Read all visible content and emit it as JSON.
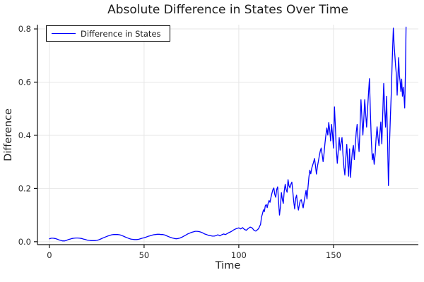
{
  "chart_data": {
    "type": "line",
    "title": "Absolute Difference in States Over Time",
    "xlabel": "Time",
    "ylabel": "Difference",
    "legend": {
      "position": "top-left",
      "entries": [
        "Difference in States"
      ]
    },
    "grid": true,
    "colors": {
      "line": "#0000ff",
      "grid": "#e6e6e6",
      "axis": "#111111",
      "tick_label": "#2b2b2b",
      "title": "#1c1c1c"
    },
    "xlim": [
      -6.3,
      194.8
    ],
    "ylim": [
      -0.011,
      0.816
    ],
    "x_ticks": [
      0,
      50,
      100,
      150
    ],
    "x_tick_labels": [
      "0",
      "50",
      "100",
      "150"
    ],
    "y_ticks": [
      0,
      0.2,
      0.4,
      0.6,
      0.8
    ],
    "y_tick_labels": [
      "0.0",
      "0.2",
      "0.4",
      "0.6",
      "0.8"
    ],
    "series": [
      {
        "name": "Difference in States",
        "color": "#0000ff",
        "points": [
          [
            0,
            0.011
          ],
          [
            1,
            0.013
          ],
          [
            2,
            0.013
          ],
          [
            3,
            0.012
          ],
          [
            4,
            0.01
          ],
          [
            5,
            0.007
          ],
          [
            6,
            0.005
          ],
          [
            7,
            0.003
          ],
          [
            8,
            0.003
          ],
          [
            9,
            0.005
          ],
          [
            10,
            0.008
          ],
          [
            11,
            0.01
          ],
          [
            12,
            0.012
          ],
          [
            13,
            0.013
          ],
          [
            14,
            0.014
          ],
          [
            15,
            0.014
          ],
          [
            16,
            0.013
          ],
          [
            17,
            0.012
          ],
          [
            18,
            0.01
          ],
          [
            19,
            0.008
          ],
          [
            20,
            0.006
          ],
          [
            21,
            0.005
          ],
          [
            22,
            0.004
          ],
          [
            23,
            0.004
          ],
          [
            24,
            0.004
          ],
          [
            25,
            0.005
          ],
          [
            26,
            0.007
          ],
          [
            27,
            0.01
          ],
          [
            28,
            0.013
          ],
          [
            29,
            0.016
          ],
          [
            30,
            0.019
          ],
          [
            31,
            0.022
          ],
          [
            32,
            0.024
          ],
          [
            33,
            0.026
          ],
          [
            34,
            0.027
          ],
          [
            35,
            0.027
          ],
          [
            36,
            0.027
          ],
          [
            37,
            0.026
          ],
          [
            38,
            0.024
          ],
          [
            39,
            0.021
          ],
          [
            40,
            0.018
          ],
          [
            41,
            0.015
          ],
          [
            42,
            0.012
          ],
          [
            43,
            0.01
          ],
          [
            44,
            0.009
          ],
          [
            45,
            0.008
          ],
          [
            46,
            0.008
          ],
          [
            47,
            0.009
          ],
          [
            48,
            0.011
          ],
          [
            49,
            0.013
          ],
          [
            50,
            0.015
          ],
          [
            51,
            0.017
          ],
          [
            52,
            0.02
          ],
          [
            53,
            0.022
          ],
          [
            54,
            0.024
          ],
          [
            55,
            0.026
          ],
          [
            56,
            0.027
          ],
          [
            57,
            0.028
          ],
          [
            58,
            0.028
          ],
          [
            59,
            0.027
          ],
          [
            60,
            0.027
          ],
          [
            61,
            0.025
          ],
          [
            62,
            0.022
          ],
          [
            63,
            0.019
          ],
          [
            64,
            0.016
          ],
          [
            65,
            0.014
          ],
          [
            66,
            0.012
          ],
          [
            67,
            0.011
          ],
          [
            68,
            0.012
          ],
          [
            69,
            0.014
          ],
          [
            70,
            0.017
          ],
          [
            71,
            0.021
          ],
          [
            72,
            0.025
          ],
          [
            73,
            0.029
          ],
          [
            74,
            0.032
          ],
          [
            75,
            0.035
          ],
          [
            76,
            0.037
          ],
          [
            77,
            0.039
          ],
          [
            78,
            0.039
          ],
          [
            79,
            0.038
          ],
          [
            80,
            0.036
          ],
          [
            81,
            0.033
          ],
          [
            82,
            0.029
          ],
          [
            83,
            0.027
          ],
          [
            84,
            0.024
          ],
          [
            85,
            0.023
          ],
          [
            86,
            0.021
          ],
          [
            87,
            0.021
          ],
          [
            88,
            0.023
          ],
          [
            89,
            0.026
          ],
          [
            90,
            0.022
          ],
          [
            91,
            0.026
          ],
          [
            92,
            0.029
          ],
          [
            93,
            0.027
          ],
          [
            94,
            0.031
          ],
          [
            95,
            0.035
          ],
          [
            96,
            0.038
          ],
          [
            97,
            0.043
          ],
          [
            98,
            0.047
          ],
          [
            99,
            0.05
          ],
          [
            100,
            0.052
          ],
          [
            101,
            0.048
          ],
          [
            102,
            0.053
          ],
          [
            103,
            0.046
          ],
          [
            104,
            0.043
          ],
          [
            105,
            0.05
          ],
          [
            106,
            0.055
          ],
          [
            107,
            0.052
          ],
          [
            108,
            0.043
          ],
          [
            109,
            0.04
          ],
          [
            110,
            0.046
          ],
          [
            110.5,
            0.05
          ],
          [
            111,
            0.058
          ],
          [
            111.5,
            0.065
          ],
          [
            112,
            0.093
          ],
          [
            112.5,
            0.105
          ],
          [
            113,
            0.12
          ],
          [
            113.5,
            0.113
          ],
          [
            114,
            0.135
          ],
          [
            114.5,
            0.14
          ],
          [
            115,
            0.128
          ],
          [
            115.5,
            0.145
          ],
          [
            116,
            0.155
          ],
          [
            116.5,
            0.148
          ],
          [
            117,
            0.167
          ],
          [
            117.5,
            0.182
          ],
          [
            118,
            0.196
          ],
          [
            118.5,
            0.202
          ],
          [
            119,
            0.178
          ],
          [
            119.5,
            0.167
          ],
          [
            120,
            0.196
          ],
          [
            120.5,
            0.206
          ],
          [
            121,
            0.15
          ],
          [
            121.5,
            0.1
          ],
          [
            122,
            0.132
          ],
          [
            122.5,
            0.185
          ],
          [
            123,
            0.158
          ],
          [
            123.5,
            0.144
          ],
          [
            124,
            0.19
          ],
          [
            124.5,
            0.216
          ],
          [
            125,
            0.196
          ],
          [
            125.5,
            0.186
          ],
          [
            126,
            0.233
          ],
          [
            126.5,
            0.21
          ],
          [
            127,
            0.203
          ],
          [
            127.5,
            0.216
          ],
          [
            128,
            0.224
          ],
          [
            128.5,
            0.19
          ],
          [
            129,
            0.152
          ],
          [
            129.5,
            0.123
          ],
          [
            130,
            0.162
          ],
          [
            130.5,
            0.175
          ],
          [
            131,
            0.14
          ],
          [
            131.5,
            0.119
          ],
          [
            132,
            0.141
          ],
          [
            132.5,
            0.155
          ],
          [
            133,
            0.158
          ],
          [
            133.5,
            0.141
          ],
          [
            134,
            0.127
          ],
          [
            134.5,
            0.152
          ],
          [
            135,
            0.172
          ],
          [
            135.5,
            0.193
          ],
          [
            136,
            0.161
          ],
          [
            136.5,
            0.2
          ],
          [
            137,
            0.242
          ],
          [
            137.5,
            0.269
          ],
          [
            138,
            0.255
          ],
          [
            138.5,
            0.276
          ],
          [
            139,
            0.287
          ],
          [
            139.5,
            0.3
          ],
          [
            140,
            0.313
          ],
          [
            140.5,
            0.284
          ],
          [
            141,
            0.254
          ],
          [
            141.5,
            0.281
          ],
          [
            142,
            0.302
          ],
          [
            142.5,
            0.322
          ],
          [
            143,
            0.341
          ],
          [
            143.5,
            0.352
          ],
          [
            144,
            0.329
          ],
          [
            144.5,
            0.301
          ],
          [
            145,
            0.331
          ],
          [
            145.5,
            0.371
          ],
          [
            146,
            0.402
          ],
          [
            146.5,
            0.428
          ],
          [
            147,
            0.401
          ],
          [
            147.5,
            0.448
          ],
          [
            148,
            0.419
          ],
          [
            148.5,
            0.379
          ],
          [
            149,
            0.441
          ],
          [
            149.5,
            0.401
          ],
          [
            150,
            0.352
          ],
          [
            150.5,
            0.507
          ],
          [
            151,
            0.431
          ],
          [
            151.5,
            0.349
          ],
          [
            152,
            0.295
          ],
          [
            152.5,
            0.341
          ],
          [
            153,
            0.392
          ],
          [
            153.5,
            0.344
          ],
          [
            154,
            0.371
          ],
          [
            154.5,
            0.392
          ],
          [
            155,
            0.329
          ],
          [
            155.5,
            0.279
          ],
          [
            156,
            0.251
          ],
          [
            156.5,
            0.311
          ],
          [
            157,
            0.366
          ],
          [
            157.5,
            0.299
          ],
          [
            158,
            0.246
          ],
          [
            158.5,
            0.349
          ],
          [
            159,
            0.242
          ],
          [
            159.5,
            0.301
          ],
          [
            160,
            0.341
          ],
          [
            160.5,
            0.362
          ],
          [
            161,
            0.309
          ],
          [
            161.5,
            0.361
          ],
          [
            162,
            0.412
          ],
          [
            162.5,
            0.441
          ],
          [
            163,
            0.379
          ],
          [
            163.5,
            0.339
          ],
          [
            164,
            0.421
          ],
          [
            164.5,
            0.534
          ],
          [
            165,
            0.469
          ],
          [
            165.5,
            0.401
          ],
          [
            166,
            0.459
          ],
          [
            166.5,
            0.534
          ],
          [
            167,
            0.479
          ],
          [
            167.5,
            0.431
          ],
          [
            168,
            0.501
          ],
          [
            168.5,
            0.559
          ],
          [
            169,
            0.613
          ],
          [
            169.5,
            0.481
          ],
          [
            170,
            0.379
          ],
          [
            170.5,
            0.308
          ],
          [
            171,
            0.331
          ],
          [
            171.5,
            0.291
          ],
          [
            172,
            0.329
          ],
          [
            172.5,
            0.389
          ],
          [
            173,
            0.432
          ],
          [
            173.5,
            0.391
          ],
          [
            174,
            0.361
          ],
          [
            174.5,
            0.409
          ],
          [
            175,
            0.45
          ],
          [
            175.5,
            0.368
          ],
          [
            176,
            0.479
          ],
          [
            176.5,
            0.595
          ],
          [
            177,
            0.499
          ],
          [
            177.5,
            0.431
          ],
          [
            178,
            0.547
          ],
          [
            178.5,
            0.399
          ],
          [
            179,
            0.211
          ],
          [
            179.5,
            0.349
          ],
          [
            180,
            0.459
          ],
          [
            180.5,
            0.559
          ],
          [
            181,
            0.679
          ],
          [
            181.6,
            0.803
          ],
          [
            182,
            0.741
          ],
          [
            182.4,
            0.699
          ],
          [
            182.8,
            0.661
          ],
          [
            183.2,
            0.629
          ],
          [
            183.6,
            0.551
          ],
          [
            184,
            0.621
          ],
          [
            184.4,
            0.692
          ],
          [
            184.8,
            0.626
          ],
          [
            185.2,
            0.599
          ],
          [
            185.6,
            0.565
          ],
          [
            186,
            0.611
          ],
          [
            186.4,
            0.547
          ],
          [
            186.8,
            0.581
          ],
          [
            187.2,
            0.549
          ],
          [
            187.6,
            0.503
          ],
          [
            188,
            0.649
          ],
          [
            188.3,
            0.807
          ]
        ]
      }
    ]
  }
}
